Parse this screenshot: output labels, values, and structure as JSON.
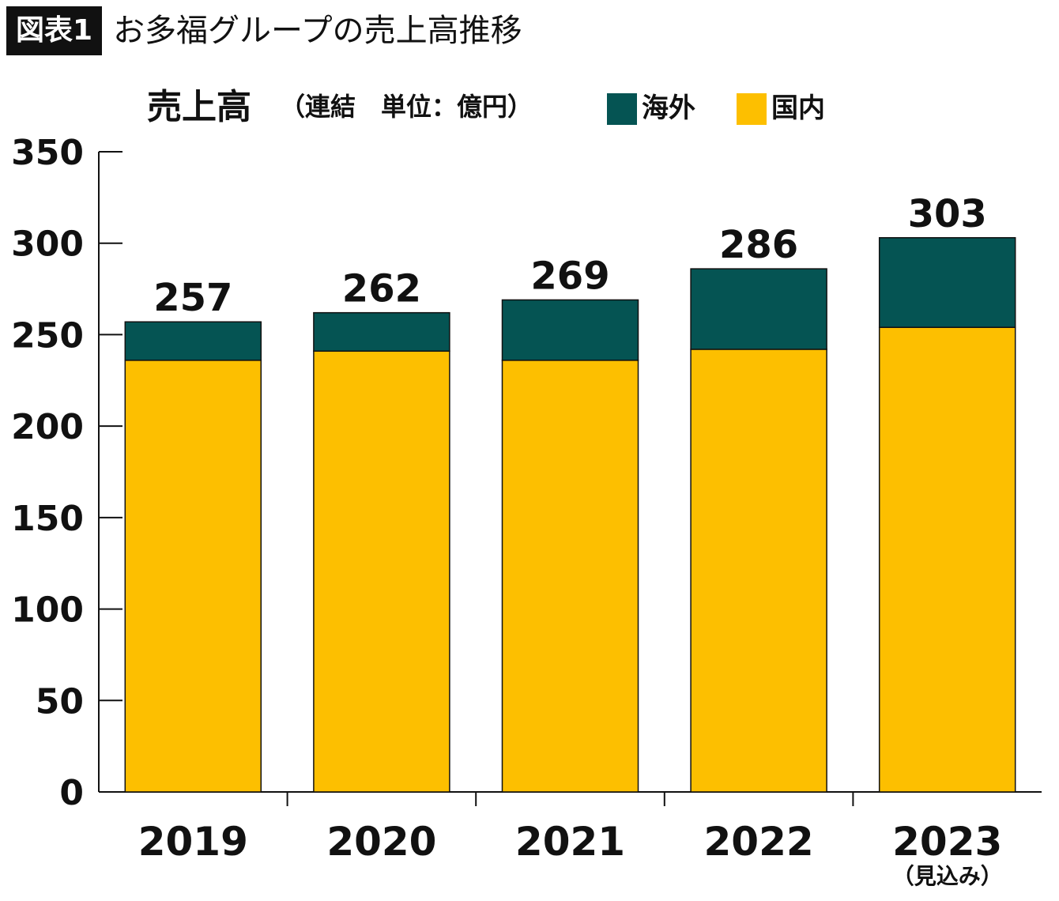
{
  "header": {
    "badge": "図表1",
    "title": "お多福グループの売上高推移"
  },
  "chart_data": {
    "type": "bar",
    "stacked": true,
    "title": "売上高",
    "subtitle": "（連結　単位：億円）",
    "categories": [
      "2019",
      "2020",
      "2021",
      "2022",
      "2023"
    ],
    "category_notes": [
      "",
      "",
      "",
      "",
      "（見込み）"
    ],
    "series": [
      {
        "name": "国内",
        "color": "#fdbf00",
        "values": [
          236,
          241,
          236,
          242,
          254
        ]
      },
      {
        "name": "海外",
        "color": "#055453",
        "values": [
          21,
          21,
          33,
          44,
          49
        ]
      }
    ],
    "totals": [
      257,
      262,
      269,
      286,
      303
    ],
    "legend": [
      {
        "name": "海外",
        "color": "#055453"
      },
      {
        "name": "国内",
        "color": "#fdbf00"
      }
    ],
    "ylim": [
      0,
      350
    ],
    "yticks": [
      0,
      50,
      100,
      150,
      200,
      250,
      300,
      350
    ],
    "grid": false,
    "legend_position": "top"
  }
}
